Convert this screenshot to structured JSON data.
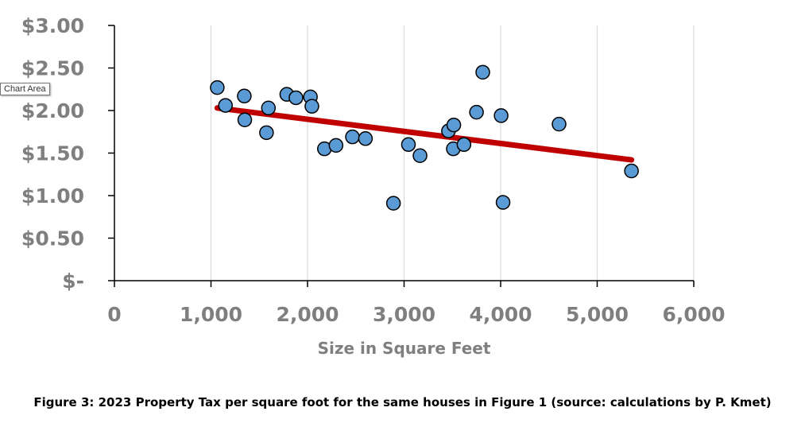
{
  "chart_data": {
    "type": "scatter",
    "title": "",
    "xlabel": "Size in Square Feet",
    "ylabel": "",
    "xlim": [
      0,
      6000
    ],
    "ylim": [
      0,
      3.0
    ],
    "x_ticks": [
      0,
      1000,
      2000,
      3000,
      4000,
      5000,
      6000
    ],
    "x_tick_labels": [
      "0",
      "1,000",
      "2,000",
      "3,000",
      "4,000",
      "5,000",
      "6,000"
    ],
    "y_ticks": [
      0,
      0.5,
      1.0,
      1.5,
      2.0,
      2.5,
      3.0
    ],
    "y_tick_labels": [
      "$-",
      "$0.50",
      "$1.00",
      "$1.50",
      "$2.00",
      "$2.50",
      "$3.00"
    ],
    "grid": "vertical",
    "points": [
      {
        "x": 1065,
        "y": 2.27
      },
      {
        "x": 1150,
        "y": 2.06
      },
      {
        "x": 1345,
        "y": 2.17
      },
      {
        "x": 1350,
        "y": 1.89
      },
      {
        "x": 1575,
        "y": 1.74
      },
      {
        "x": 1595,
        "y": 2.03
      },
      {
        "x": 1785,
        "y": 2.19
      },
      {
        "x": 1880,
        "y": 2.15
      },
      {
        "x": 2030,
        "y": 2.16
      },
      {
        "x": 2045,
        "y": 2.05
      },
      {
        "x": 2175,
        "y": 1.55
      },
      {
        "x": 2295,
        "y": 1.59
      },
      {
        "x": 2465,
        "y": 1.69
      },
      {
        "x": 2600,
        "y": 1.67
      },
      {
        "x": 2890,
        "y": 0.91
      },
      {
        "x": 3045,
        "y": 1.6
      },
      {
        "x": 3165,
        "y": 1.47
      },
      {
        "x": 3460,
        "y": 1.76
      },
      {
        "x": 3515,
        "y": 1.83
      },
      {
        "x": 3510,
        "y": 1.55
      },
      {
        "x": 3620,
        "y": 1.6
      },
      {
        "x": 3750,
        "y": 1.98
      },
      {
        "x": 3815,
        "y": 2.45
      },
      {
        "x": 4005,
        "y": 1.94
      },
      {
        "x": 4025,
        "y": 0.92
      },
      {
        "x": 4605,
        "y": 1.84
      },
      {
        "x": 5355,
        "y": 1.29
      }
    ],
    "trendline": {
      "x": [
        1065,
        5355
      ],
      "y": [
        2.03,
        1.42
      ]
    },
    "colors": {
      "marker_fill": "#5b9bd5",
      "marker_stroke": "#000000",
      "trendline": "#c00000",
      "grid": "#d9d9d9",
      "tick_text": "#7f7f7f"
    }
  },
  "caption": "Figure 3: 2023 Property Tax per square foot for the same houses in Figure 1 (source: calculations by P. Kmet)",
  "tooltip": "Chart Area"
}
